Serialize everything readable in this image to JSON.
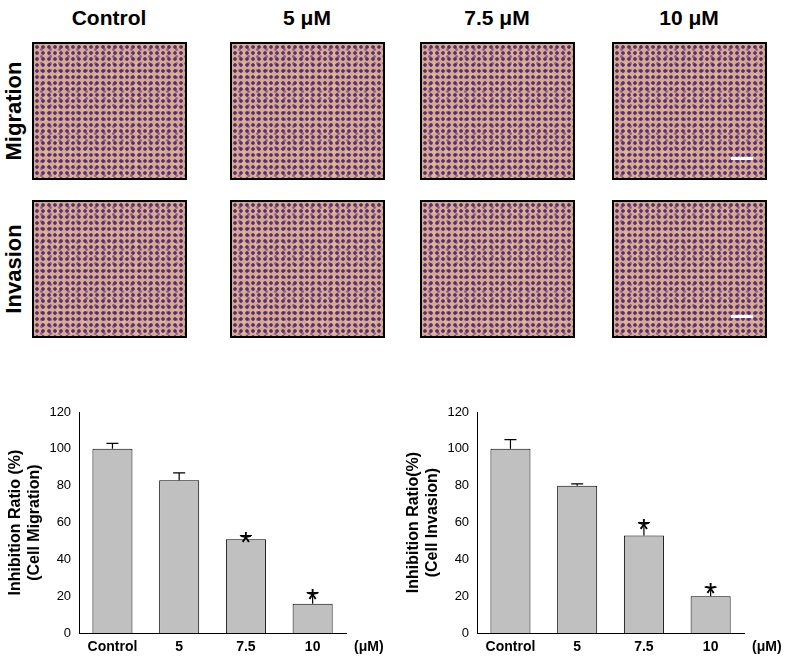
{
  "panels": {
    "columns": [
      "Control",
      "5 μM",
      "7.5 μM",
      "10 μM"
    ],
    "rows": [
      "Migration",
      "Invasion"
    ]
  },
  "chart_data": [
    {
      "type": "bar",
      "ylabel": [
        "Inhibition Ratio (%)",
        "(Cell Migration)"
      ],
      "xlabel": "(μM)",
      "categories": [
        "Control",
        "5",
        "7.5",
        "10"
      ],
      "values": [
        100,
        83,
        51,
        16
      ],
      "errors": [
        3,
        4,
        2,
        6
      ],
      "color": "#c0c0c0",
      "ylim": [
        0,
        120
      ],
      "yticks": [
        0,
        20,
        40,
        60,
        80,
        100,
        120
      ],
      "grid": false,
      "annotations": [
        {
          "x": "7.5",
          "text": "*"
        },
        {
          "x": "10",
          "text": "*"
        }
      ]
    },
    {
      "type": "bar",
      "ylabel": [
        "Inhibition Ratio(%)",
        "(Cell Invasion)"
      ],
      "xlabel": "(μM)",
      "categories": [
        "Control",
        "5",
        "7.5",
        "10"
      ],
      "values": [
        100,
        80,
        53,
        20
      ],
      "errors": [
        5,
        1,
        7,
        5
      ],
      "color": "#c0c0c0",
      "ylim": [
        0,
        120
      ],
      "yticks": [
        0,
        20,
        40,
        60,
        80,
        100,
        120
      ],
      "grid": false,
      "annotations": [
        {
          "x": "7.5",
          "text": "*"
        },
        {
          "x": "10",
          "text": "*"
        }
      ]
    }
  ]
}
